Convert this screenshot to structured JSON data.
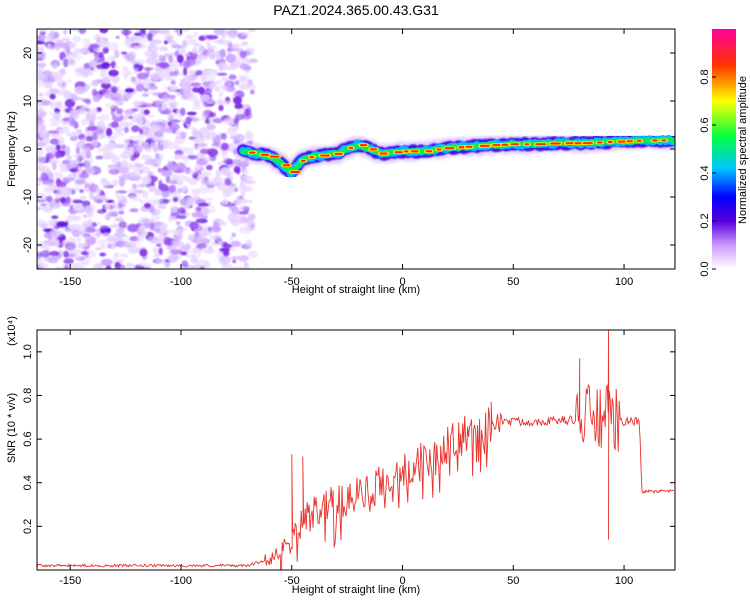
{
  "title": "PAZ1.2024.365.00.43.G31",
  "chart_data": [
    {
      "type": "heatmap",
      "xlabel": "Height of straight line (km)",
      "ylabel": "Frequency (Hz)",
      "xlim": [
        -165,
        123
      ],
      "ylim": [
        -25,
        25
      ],
      "xticks": [
        -150,
        -100,
        -50,
        0,
        50,
        100
      ],
      "yticks": [
        -20,
        -10,
        0,
        10,
        20
      ],
      "noise_region_x": [
        -165,
        -68
      ],
      "ridge": {
        "x": [
          -72,
          -60,
          -55,
          -50,
          -45,
          -40,
          -30,
          -20,
          -15,
          -10,
          0,
          10,
          20,
          30,
          40,
          50,
          60,
          70,
          80,
          90,
          100,
          110,
          123
        ],
        "freq": [
          -0.5,
          -1.5,
          -3,
          -5,
          -2,
          -1.5,
          -1,
          1,
          0,
          -1,
          -0.5,
          -0.5,
          0.2,
          0.5,
          0.8,
          1.0,
          1.0,
          1.2,
          1.2,
          1.4,
          1.6,
          1.8,
          1.8
        ]
      },
      "colorbar": {
        "label": "Normalized spectral amplitude",
        "range": [
          0,
          1
        ],
        "ticks": [
          0.0,
          0.2,
          0.4,
          0.6,
          0.8
        ],
        "tick_labels": [
          "0.0",
          "0.2",
          "0.4",
          "0.6",
          "0.8"
        ]
      },
      "grid": false
    },
    {
      "type": "line",
      "xlabel": "Height of straight line (km)",
      "ylabel": "SNR (10 * v/v)",
      "y_multiplier": "(x10⁴)",
      "xlim": [
        -165,
        123
      ],
      "ylim": [
        0,
        1.1
      ],
      "xticks": [
        -150,
        -100,
        -50,
        0,
        50,
        100
      ],
      "yticks": [
        0.2,
        0.4,
        0.6,
        0.8,
        1.0
      ],
      "ytick_labels": [
        "0.2",
        "0.4",
        "0.6",
        "0.8",
        "1.0"
      ],
      "series": [
        {
          "color": "#e8322c",
          "x": [
            -165,
            -70,
            -60,
            -55,
            -50,
            -45,
            -40,
            -30,
            -20,
            -10,
            0,
            10,
            20,
            25,
            30,
            35,
            40,
            45,
            60,
            80,
            85,
            90,
            95,
            100,
            107,
            108,
            115,
            123
          ],
          "y": [
            0.02,
            0.02,
            0.05,
            0.09,
            0.17,
            0.23,
            0.28,
            0.31,
            0.36,
            0.4,
            0.46,
            0.52,
            0.57,
            0.6,
            0.63,
            0.65,
            0.67,
            0.68,
            0.68,
            0.69,
            0.7,
            0.7,
            0.68,
            0.68,
            0.68,
            0.36,
            0.36,
            0.36
          ]
        }
      ],
      "annotations": [
        {
          "x": -50,
          "y": 0.53
        },
        {
          "x": -45,
          "y": 0.52
        },
        {
          "x": 40,
          "y": 0.77
        },
        {
          "x": 80,
          "y": 0.97
        },
        {
          "x": 93,
          "y": 1.1
        },
        {
          "x": 93,
          "y": 0.14
        }
      ],
      "grid": false
    }
  ]
}
